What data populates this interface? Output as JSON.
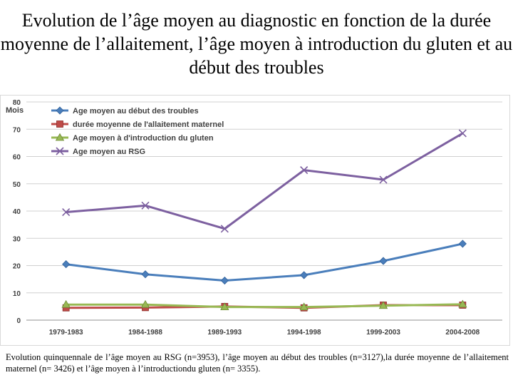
{
  "title": "Evolution de l’âge moyen au diagnostic en fonction de la durée moyenne de l’allaitement, l’âge moyen à introduction du gluten et au début des troubles",
  "caption": "Evolution quinquennale de l’âge moyen au RSG (n=3953), l’âge moyen au début des troubles (n=3127),la durée moyenne de l’allaitement maternel (n= 3426) et l’âge moyen à l’introductiondu gluten (n= 3355).",
  "chart_data": {
    "type": "line",
    "ylabel": "Mois",
    "xlabel": "",
    "ylim": [
      0,
      80
    ],
    "yticks": [
      0,
      10,
      20,
      30,
      40,
      50,
      60,
      70,
      80
    ],
    "grid": true,
    "legend_position": "top-left",
    "categories": [
      "1979-1983",
      "1984-1988",
      "1989-1993",
      "1994-1998",
      "1999-2003",
      "2004-2008"
    ],
    "series": [
      {
        "name": "Age moyen au début des troubles",
        "color": "#4a7ebb",
        "marker": "diamond",
        "values": [
          20.5,
          16.8,
          14.5,
          16.5,
          21.7,
          28.0
        ]
      },
      {
        "name": "durée moyenne de l'allaitement maternel",
        "color": "#be4b48",
        "marker": "square",
        "values": [
          4.5,
          4.6,
          5.0,
          4.5,
          5.5,
          5.5
        ]
      },
      {
        "name": "Age moyen à d'introduction du gluten",
        "color": "#98b954",
        "marker": "triangle",
        "values": [
          5.7,
          5.7,
          4.8,
          4.8,
          5.3,
          5.8
        ]
      },
      {
        "name": "Age moyen au RSG",
        "color": "#7d60a0",
        "marker": "x",
        "values": [
          39.6,
          42.0,
          33.5,
          55.0,
          51.5,
          68.5
        ]
      }
    ]
  }
}
